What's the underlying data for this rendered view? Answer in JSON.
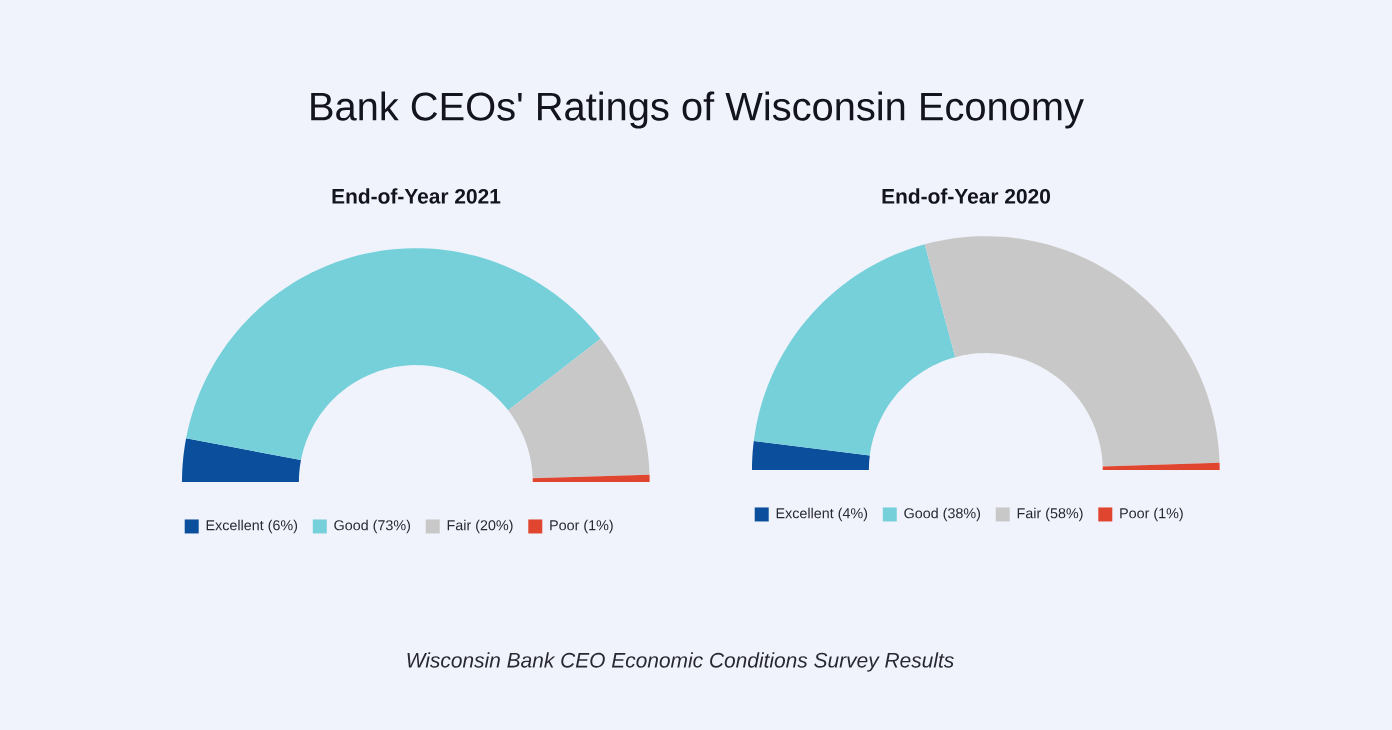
{
  "chart_data": [
    {
      "type": "donut",
      "title": "Bank CEOs' Ratings of Wisconsin Economy",
      "subtitle": "End-of-Year 2021",
      "categories": [
        "Excellent (6%)",
        "Good (73%)",
        "Fair (20%)",
        "Poor (1%)"
      ],
      "values": [
        6,
        73,
        20,
        1
      ],
      "colors": [
        "#0b4f9c",
        "#76d0da",
        "#c8c8c8",
        "#e0452f"
      ],
      "legend": "bottom",
      "annotations": [
        "Wisconsin Bank CEO Economic Conditions Survey Results"
      ]
    },
    {
      "type": "donut",
      "subtitle": "End-of-Year 2020",
      "categories": [
        "Excellent (4%)",
        "Good (38%)",
        "Fair (58%)",
        "Poor (1%)"
      ],
      "values": [
        4,
        38,
        58,
        1
      ],
      "colors": [
        "#0b4f9c",
        "#76d0da",
        "#c8c8c8",
        "#e0452f"
      ],
      "legend": "bottom"
    }
  ]
}
